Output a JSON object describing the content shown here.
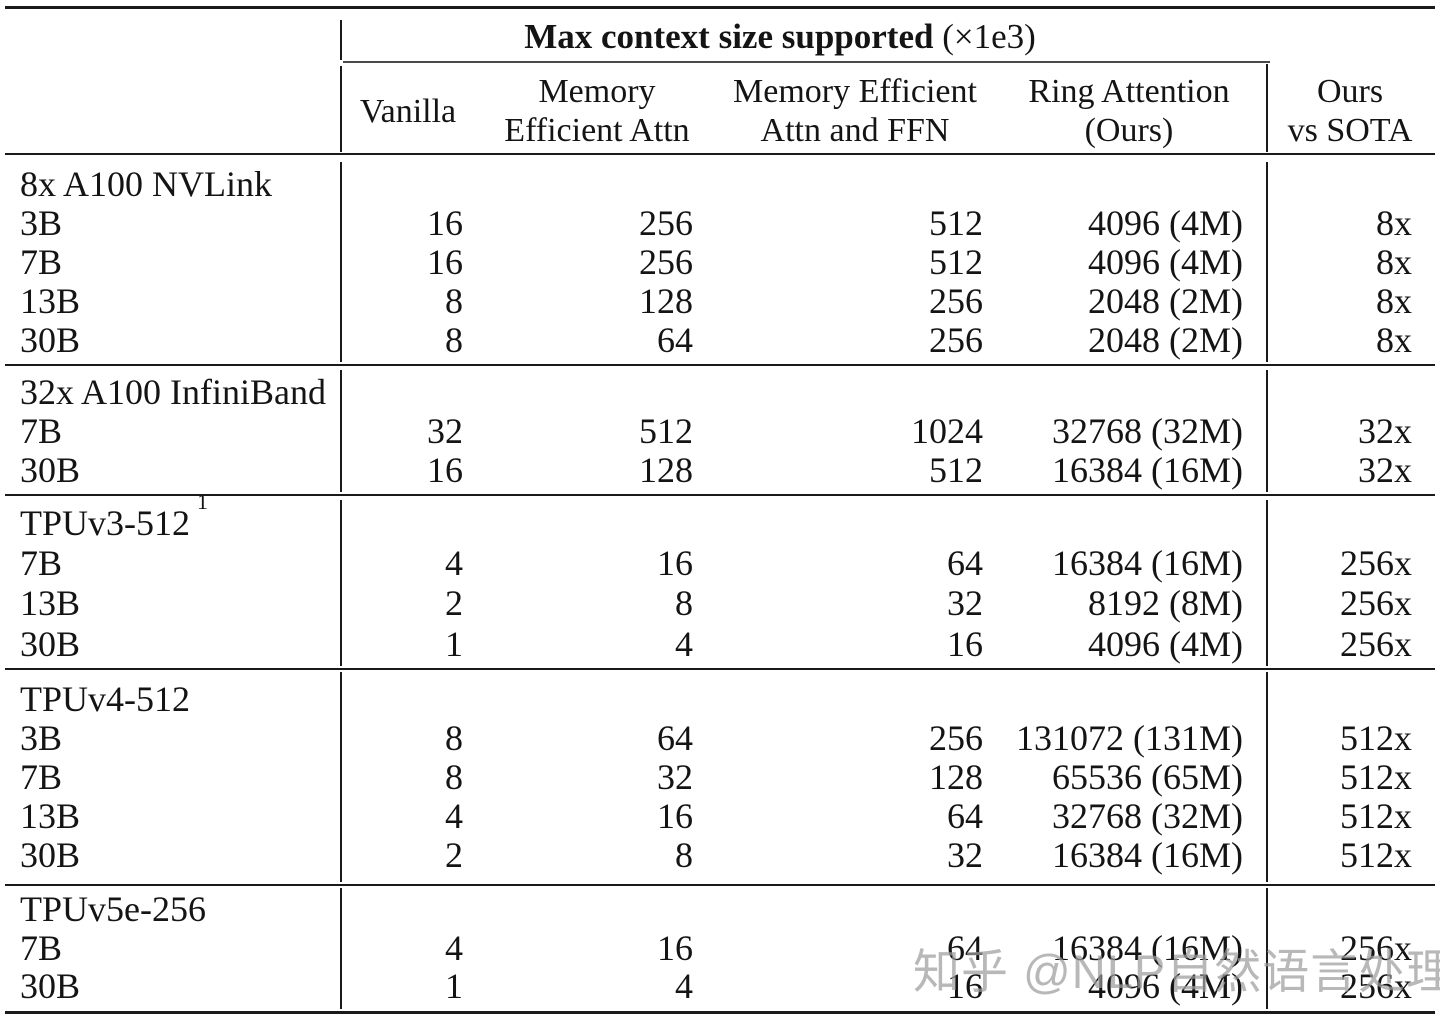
{
  "table": {
    "title_bold": "Max context size supported",
    "title_suffix": " (×1e3)",
    "columns": [
      {
        "line1": "Vanilla",
        "line2": ""
      },
      {
        "line1": "Memory",
        "line2": "Efficient Attn"
      },
      {
        "line1": "Memory Efficient",
        "line2": "Attn and FFN"
      },
      {
        "line1": "Ring Attention",
        "line2": "(Ours)"
      },
      {
        "line1": "Ours",
        "line2": "vs SOTA"
      }
    ],
    "sections": [
      {
        "hardware": "8x A100 NVLink",
        "superscript": "",
        "rows": [
          {
            "model": "3B",
            "values": [
              "16",
              "256",
              "512",
              "4096 (4M)",
              "8x"
            ]
          },
          {
            "model": "7B",
            "values": [
              "16",
              "256",
              "512",
              "4096 (4M)",
              "8x"
            ]
          },
          {
            "model": "13B",
            "values": [
              "8",
              "128",
              "256",
              "2048 (2M)",
              "8x"
            ]
          },
          {
            "model": "30B",
            "values": [
              "8",
              "64",
              "256",
              "2048 (2M)",
              "8x"
            ]
          }
        ]
      },
      {
        "hardware": "32x A100 InfiniBand",
        "superscript": "",
        "rows": [
          {
            "model": "7B",
            "values": [
              "32",
              "512",
              "1024",
              "32768 (32M)",
              "32x"
            ]
          },
          {
            "model": "30B",
            "values": [
              "16",
              "128",
              "512",
              "16384 (16M)",
              "32x"
            ]
          }
        ]
      },
      {
        "hardware": "TPUv3-512",
        "superscript": "1",
        "rows": [
          {
            "model": "7B",
            "values": [
              "4",
              "16",
              "64",
              "16384 (16M)",
              "256x"
            ]
          },
          {
            "model": "13B",
            "values": [
              "2",
              "8",
              "32",
              "8192 (8M)",
              "256x"
            ]
          },
          {
            "model": "30B",
            "values": [
              "1",
              "4",
              "16",
              "4096 (4M)",
              "256x"
            ]
          }
        ]
      },
      {
        "hardware": "TPUv4-512",
        "superscript": "",
        "rows": [
          {
            "model": "3B",
            "values": [
              "8",
              "64",
              "256",
              "131072 (131M)",
              "512x"
            ]
          },
          {
            "model": "7B",
            "values": [
              "8",
              "32",
              "128",
              "65536 (65M)",
              "512x"
            ]
          },
          {
            "model": "13B",
            "values": [
              "4",
              "16",
              "64",
              "32768 (32M)",
              "512x"
            ]
          },
          {
            "model": "30B",
            "values": [
              "2",
              "8",
              "32",
              "16384 (16M)",
              "512x"
            ]
          }
        ]
      },
      {
        "hardware": "TPUv5e-256",
        "superscript": "",
        "rows": [
          {
            "model": "7B",
            "values": [
              "4",
              "16",
              "64",
              "16384 (16M)",
              "256x"
            ]
          },
          {
            "model": "30B",
            "values": [
              "1",
              "4",
              "16",
              "4096 (4M)",
              "256x"
            ]
          }
        ]
      }
    ]
  },
  "watermark": {
    "text": "知乎 @NLP自然语言处理",
    "color": "#9d9d9d"
  },
  "colors": {
    "rule": "#1a1a1a",
    "text": "#141414",
    "background": "#ffffff"
  }
}
